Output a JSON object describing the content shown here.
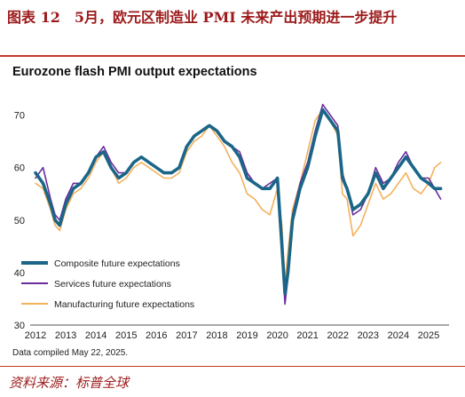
{
  "caption": "图表 12　5月，欧元区制造业 PMI 未来产出预期进一步提升",
  "footer": {
    "note": "Data compiled May 22, 2025.",
    "source": "资料来源：标普全球"
  },
  "colors": {
    "caption": "#9c1a1a",
    "composite": "#1b6688",
    "services": "#6a2c9c",
    "manufacturing": "#f4b15c"
  },
  "chart_data": {
    "type": "line",
    "title": "Eurozone flash PMI output expectations",
    "xlabel": "",
    "ylabel": "",
    "xlim": [
      2012.0,
      2025.5
    ],
    "ylim": [
      30,
      75
    ],
    "yticks": [
      30,
      40,
      50,
      60,
      70
    ],
    "xticks": [
      2012,
      2013,
      2014,
      2015,
      2016,
      2017,
      2018,
      2019,
      2020,
      2021,
      2022,
      2023,
      2024,
      2025
    ],
    "grid": false,
    "legend": "bottom-left",
    "x": [
      2012.0,
      2012.25,
      2012.5,
      2012.65,
      2012.8,
      2013.0,
      2013.25,
      2013.5,
      2013.75,
      2014.0,
      2014.25,
      2014.5,
      2014.75,
      2015.0,
      2015.25,
      2015.5,
      2015.75,
      2016.0,
      2016.25,
      2016.5,
      2016.75,
      2017.0,
      2017.25,
      2017.5,
      2017.75,
      2018.0,
      2018.25,
      2018.5,
      2018.75,
      2019.0,
      2019.25,
      2019.5,
      2019.75,
      2020.0,
      2020.15,
      2020.25,
      2020.35,
      2020.5,
      2020.75,
      2021.0,
      2021.25,
      2021.5,
      2021.75,
      2022.0,
      2022.15,
      2022.3,
      2022.5,
      2022.75,
      2023.0,
      2023.25,
      2023.5,
      2023.75,
      2024.0,
      2024.25,
      2024.5,
      2024.75,
      2025.0,
      2025.2,
      2025.4
    ],
    "series": [
      {
        "name": "Composite future expectations",
        "values": [
          59,
          57,
          53,
          50,
          49,
          53,
          56,
          57,
          59,
          62,
          63,
          60,
          58,
          59,
          61,
          62,
          61,
          60,
          59,
          59,
          60,
          64,
          66,
          67,
          68,
          67,
          65,
          64,
          62,
          58,
          57,
          56,
          56,
          58,
          45,
          36,
          40,
          50,
          56,
          60,
          66,
          71,
          69,
          67,
          58,
          56,
          52,
          53,
          55,
          59,
          56,
          58,
          60,
          62,
          60,
          58,
          57,
          56,
          56
        ]
      },
      {
        "name": "Services future expectations",
        "values": [
          58,
          60,
          54,
          51,
          50,
          54,
          57,
          57,
          59,
          62,
          64,
          61,
          59,
          59,
          61,
          62,
          61,
          60,
          59,
          59,
          60,
          64,
          66,
          67,
          68,
          67,
          65,
          64,
          63,
          59,
          57,
          56,
          57,
          58,
          44,
          34,
          39,
          51,
          57,
          61,
          67,
          72,
          70,
          68,
          59,
          56,
          51,
          52,
          55,
          60,
          57,
          58,
          61,
          63,
          60,
          58,
          58,
          56,
          54
        ]
      },
      {
        "name": "Manufacturing future expectations",
        "values": [
          57,
          56,
          52,
          49,
          48,
          52,
          55,
          56,
          58,
          61,
          63,
          60,
          57,
          58,
          60,
          61,
          60,
          59,
          58,
          58,
          59,
          63,
          65,
          66,
          68,
          66,
          64,
          61,
          59,
          55,
          54,
          52,
          51,
          56,
          49,
          38,
          44,
          52,
          57,
          63,
          69,
          71,
          69,
          66,
          55,
          54,
          47,
          49,
          53,
          57,
          54,
          55,
          57,
          59,
          56,
          55,
          57,
          60,
          61
        ]
      }
    ]
  }
}
